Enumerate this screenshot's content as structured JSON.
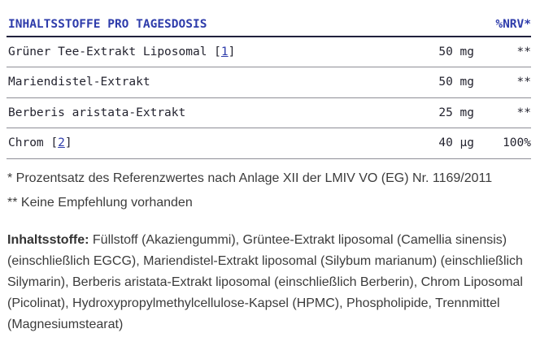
{
  "table": {
    "header": {
      "title": "INHALTSSTOFFE PRO TAGESDOSIS",
      "nrv_label": "%NRV*"
    },
    "rows": [
      {
        "name": "Grüner Tee-Extrakt Liposomal",
        "ref_prefix": " [",
        "ref": "1",
        "ref_suffix": "]",
        "amount": "50 mg",
        "nrv": "**"
      },
      {
        "name": "Mariendistel-Extrakt",
        "amount": "50 mg",
        "nrv": "**"
      },
      {
        "name": "Berberis aristata-Extrakt",
        "amount": "25 mg",
        "nrv": "**"
      },
      {
        "name": "Chrom",
        "ref_prefix": " [",
        "ref": "2",
        "ref_suffix": "]",
        "amount": "40 µg",
        "nrv": "100%"
      }
    ]
  },
  "footnotes": {
    "line1": "* Prozentsatz des Referenzwertes nach Anlage XII der LMIV VO (EG) Nr. 1169/2011",
    "line2": "** Keine Empfehlung vorhanden"
  },
  "ingredients": {
    "label": "Inhaltsstoffe:",
    "text": " Füllstoff (Akaziengummi), Grüntee-Extrakt liposomal (Camellia sinensis) (einschließlich EGCG), Mariendistel-Extrakt liposomal (Silybum marianum) (einschließlich Silymarin), Berberis aristata-Extrakt liposomal (einschließlich Berberin), Chrom Liposomal (Picolinat), Hydroxypropylmethylcellulose-Kapsel (HPMC), Phospholipide, Trennmittel (Magnesiumstearat)"
  },
  "colors": {
    "accent_blue": "#2e3cab",
    "table_text": "#23232f",
    "body_text": "#3b3b3b",
    "header_rule": "#20213c",
    "row_rule": "#8e8e96"
  }
}
